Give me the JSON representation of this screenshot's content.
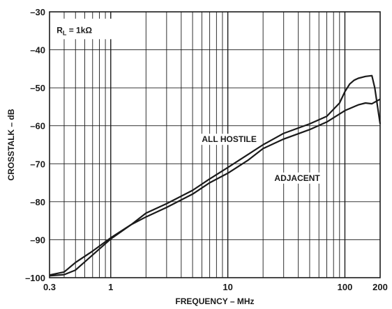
{
  "chart_data": {
    "type": "line",
    "title": "",
    "xlabel": "FREQUENCY – MHz",
    "ylabel": "CROSSTALK – dB",
    "x_scale": "log",
    "xlim": [
      0.3,
      200
    ],
    "ylim": [
      -100,
      -30
    ],
    "grid": true,
    "x_tick_labels": [
      {
        "value": 0.3,
        "label": "0.3"
      },
      {
        "value": 1,
        "label": "1"
      },
      {
        "value": 10,
        "label": "10"
      },
      {
        "value": 100,
        "label": "100"
      },
      {
        "value": 200,
        "label": "200"
      }
    ],
    "y_ticks": [
      -100,
      -90,
      -80,
      -70,
      -60,
      -50,
      -40,
      -30
    ],
    "y_tick_labels": [
      "–100",
      "–90",
      "–80",
      "–70",
      "–60",
      "–50",
      "–40",
      "–30"
    ],
    "condition": {
      "main": "R",
      "sub": "L",
      "rest": " = 1kΩ"
    },
    "annotations": [
      {
        "text": "ALL HOSTILE",
        "x": 6,
        "y": -64.3
      },
      {
        "text": "ADJACENT",
        "x": 25,
        "y": -74.5
      }
    ],
    "series": [
      {
        "name": "ALL HOSTILE",
        "x": [
          0.3,
          0.4,
          0.5,
          0.7,
          1,
          1.5,
          2,
          3,
          5,
          7,
          10,
          15,
          20,
          30,
          50,
          70,
          90,
          100,
          110,
          120,
          130,
          150,
          170,
          180,
          190,
          200
        ],
        "y": [
          -99.3,
          -98.5,
          -96,
          -93,
          -89.5,
          -86,
          -83,
          -80.5,
          -77,
          -74,
          -71,
          -67.5,
          -65,
          -62,
          -59.5,
          -57.5,
          -54,
          -51,
          -49,
          -48,
          -47.5,
          -47,
          -46.8,
          -50,
          -55,
          -59.5
        ]
      },
      {
        "name": "ADJACENT",
        "x": [
          0.3,
          0.4,
          0.5,
          0.7,
          1,
          1.5,
          2,
          3,
          5,
          7,
          10,
          15,
          20,
          30,
          50,
          70,
          100,
          130,
          150,
          170,
          200
        ],
        "y": [
          -99.5,
          -99.2,
          -98,
          -94,
          -89.8,
          -86,
          -84,
          -81.5,
          -78,
          -75,
          -72.5,
          -69,
          -66,
          -63.5,
          -61,
          -59,
          -56,
          -54.5,
          -54,
          -54.2,
          -53
        ]
      }
    ]
  }
}
